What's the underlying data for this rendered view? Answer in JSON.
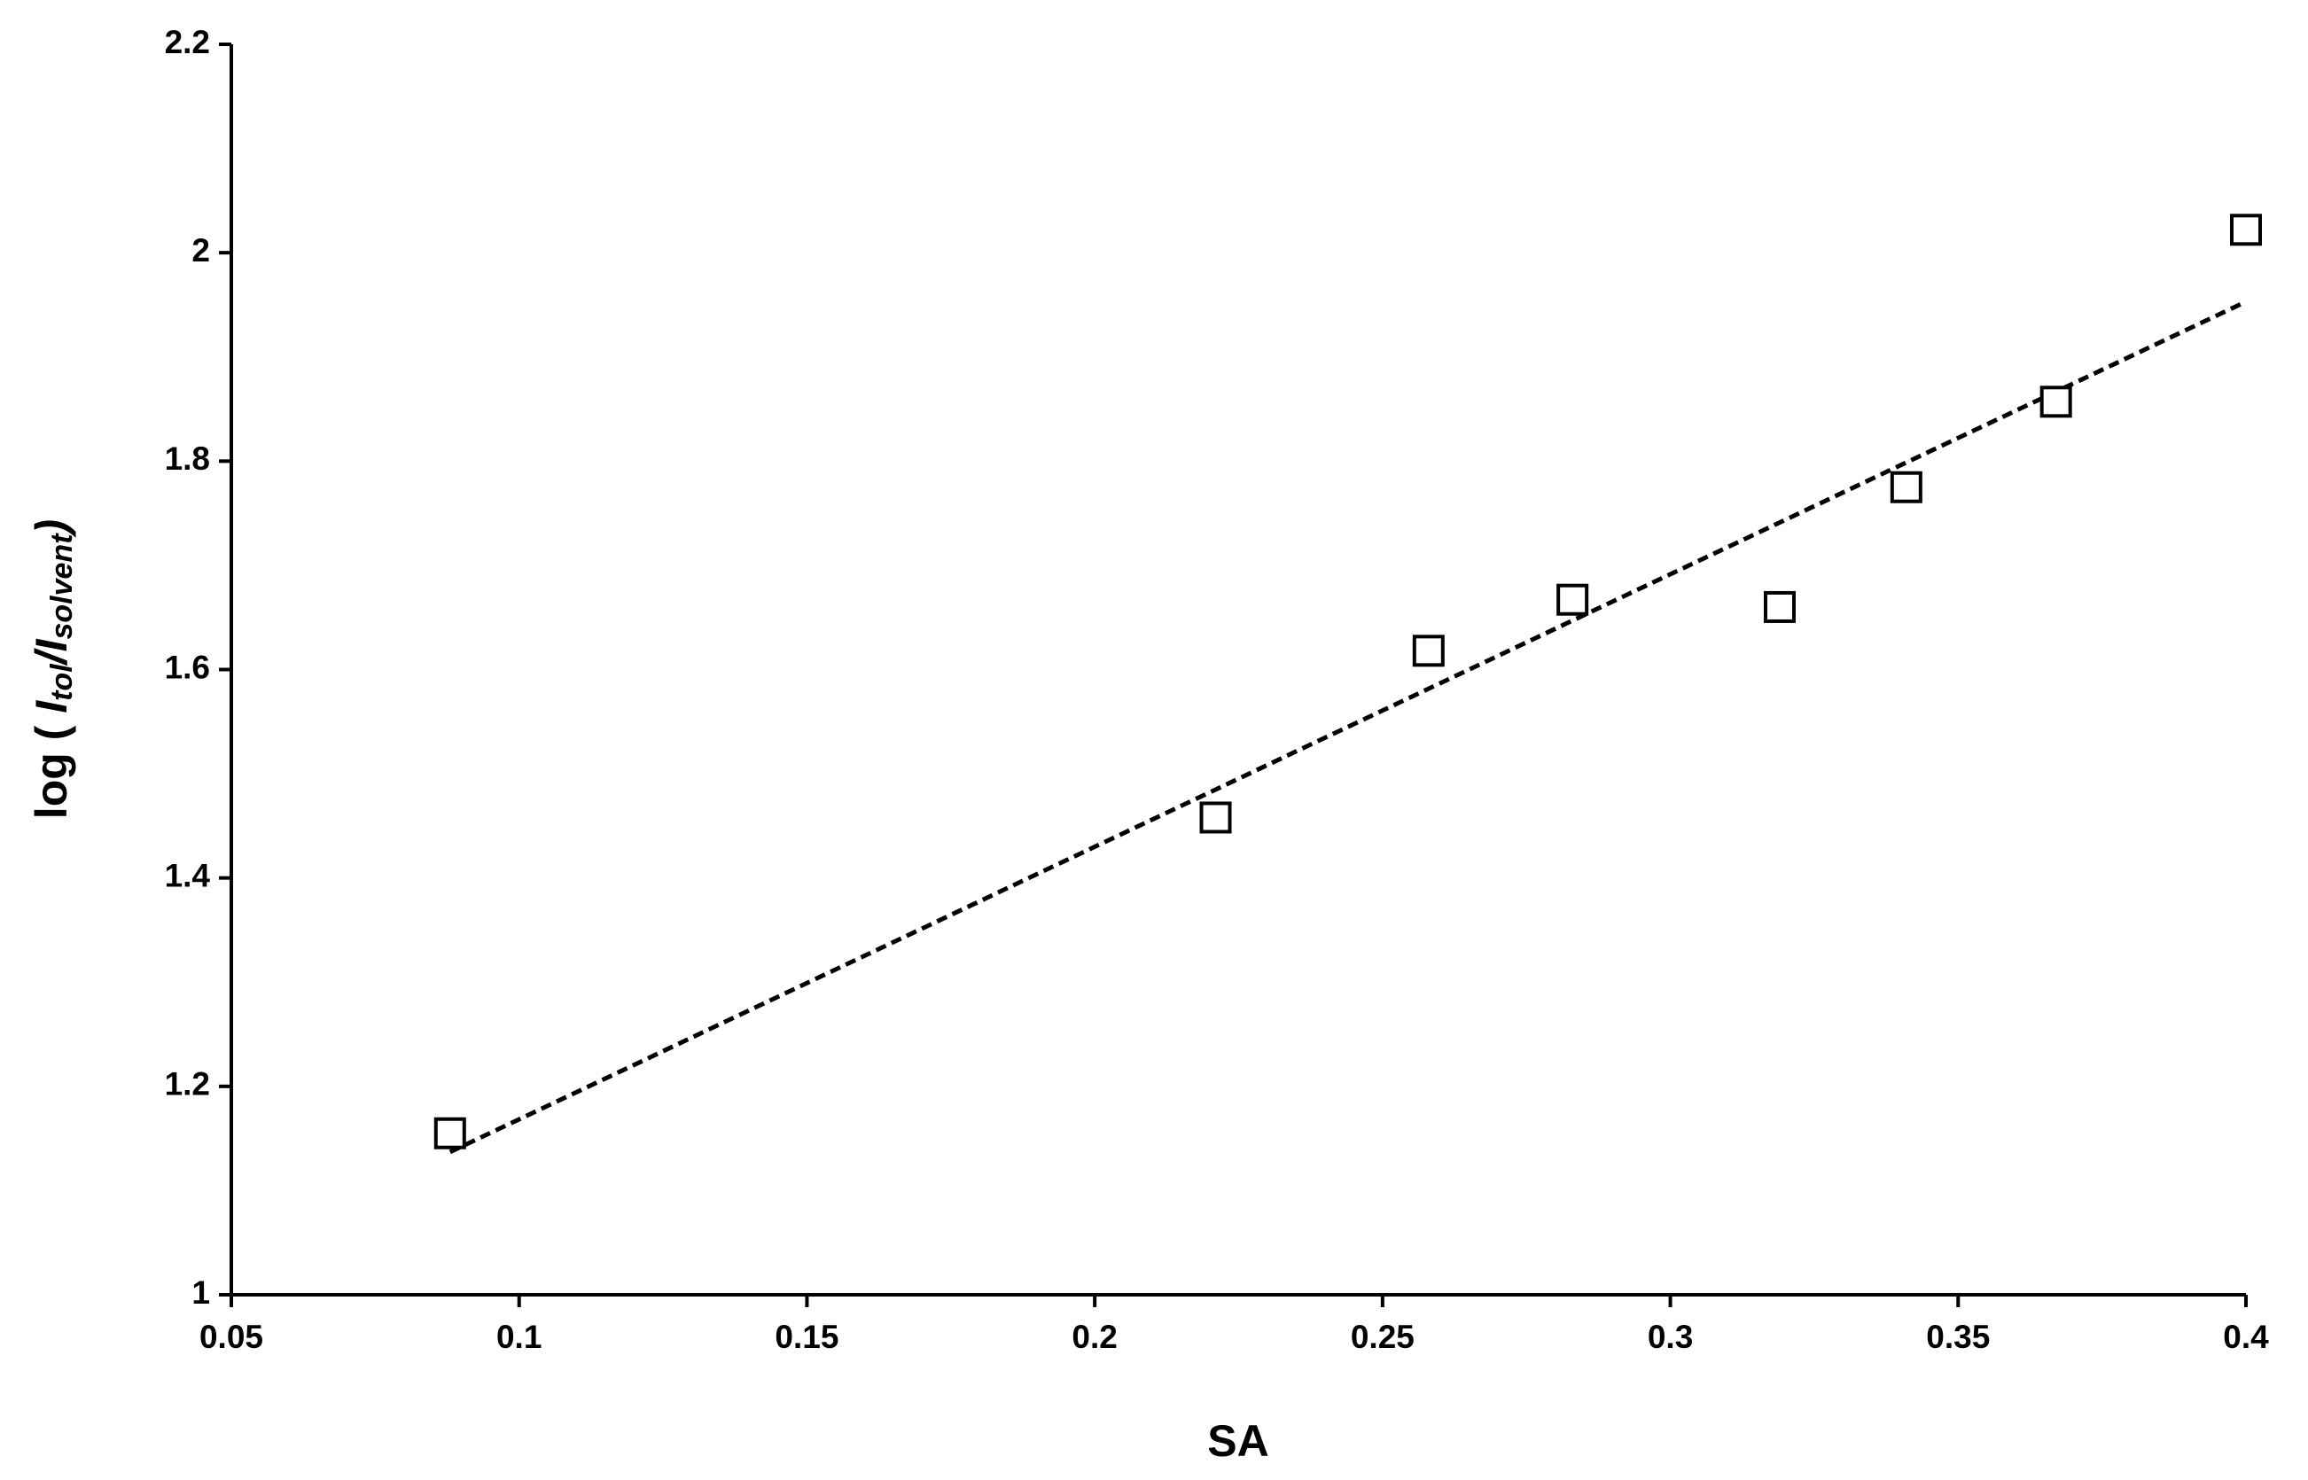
{
  "chart_data": {
    "type": "scatter",
    "xlabel": "SA",
    "ylabel": [
      "log ( ",
      "I",
      "tol",
      "/I",
      "solvent",
      ")"
    ],
    "x": [
      0.088,
      0.221,
      0.258,
      0.283,
      0.319,
      0.341,
      0.367,
      0.4
    ],
    "values": [
      1.155,
      1.458,
      1.618,
      1.667,
      1.66,
      1.775,
      1.857,
      2.022
    ],
    "color": "#000000",
    "trendline": {
      "x": [
        0.088,
        0.4
      ],
      "values": [
        1.137,
        1.953
      ],
      "color": "#000000"
    },
    "xlim": [
      0.05,
      0.4
    ],
    "xticks": [
      0.05,
      0.1,
      0.15,
      0.2,
      0.25,
      0.3,
      0.35,
      0.4
    ],
    "ylim": [
      1,
      2.2
    ],
    "yticks": [
      1,
      1.2,
      1.4,
      1.6,
      1.8,
      2,
      2.2
    ],
    "grid": false
  }
}
